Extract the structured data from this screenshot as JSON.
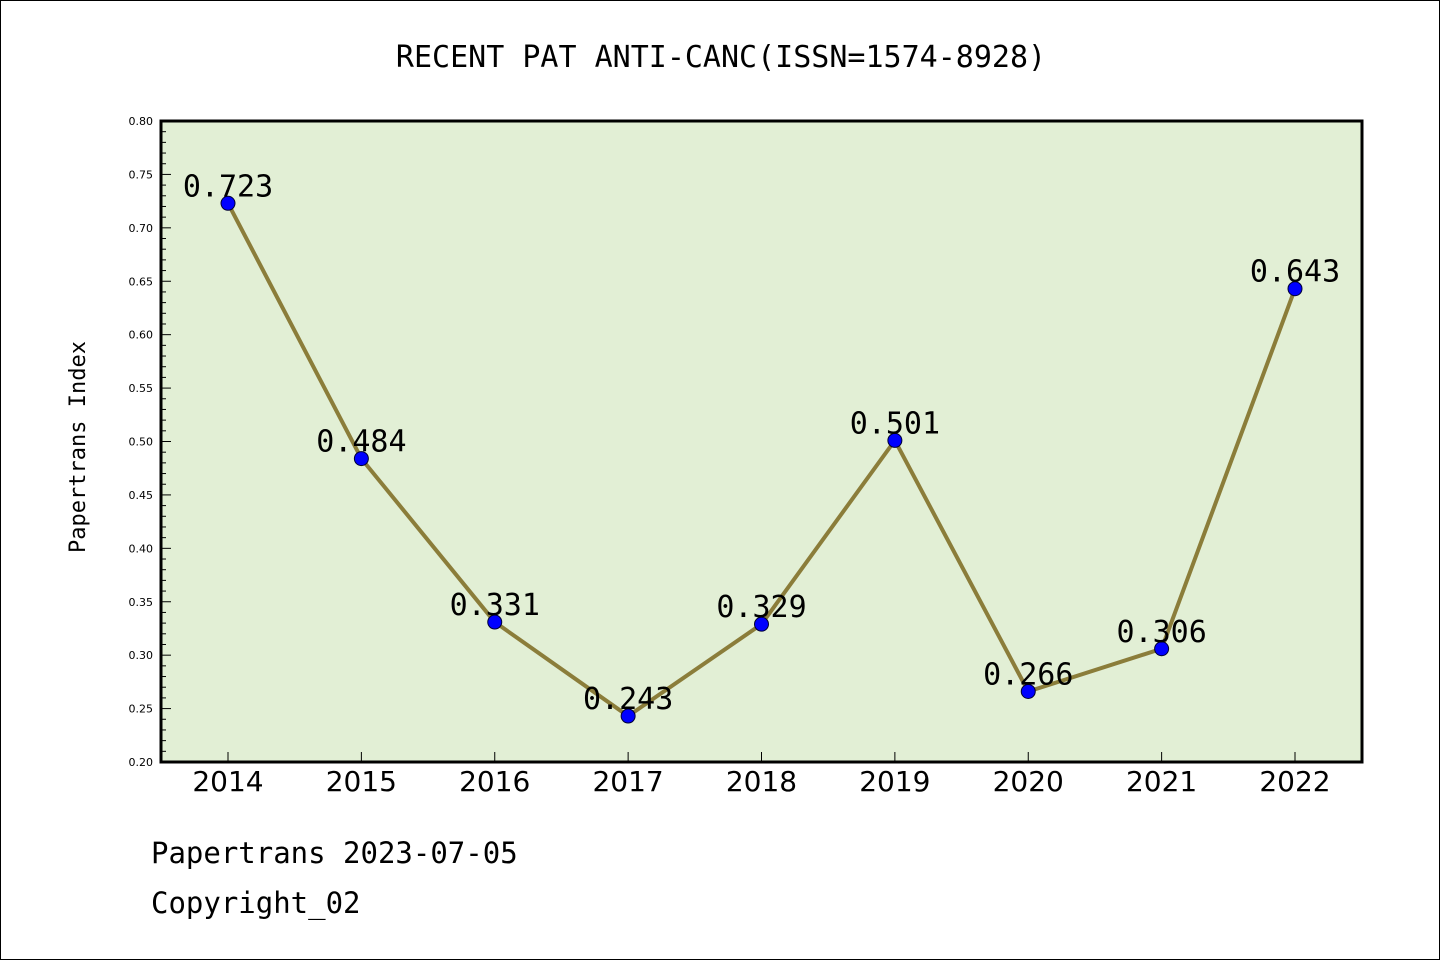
{
  "chart_data": {
    "type": "line",
    "title": "RECENT PAT ANTI-CANC(ISSN=1574-8928)",
    "ylabel": "Papertrans Index",
    "xlabel": "",
    "categories": [
      "2014",
      "2015",
      "2016",
      "2017",
      "2018",
      "2019",
      "2020",
      "2021",
      "2022"
    ],
    "values": [
      0.723,
      0.484,
      0.331,
      0.243,
      0.329,
      0.501,
      0.266,
      0.306,
      0.643
    ],
    "data_labels": [
      "0.723",
      "0.484",
      "0.331",
      "0.243",
      "0.329",
      "0.501",
      "0.266",
      "0.306",
      "0.643"
    ],
    "ylim": [
      0.2,
      0.8
    ],
    "yticks": [
      "0.20",
      "0.25",
      "0.30",
      "0.35",
      "0.40",
      "0.45",
      "0.50",
      "0.55",
      "0.60",
      "0.65",
      "0.70",
      "0.75",
      "0.80"
    ],
    "grid": false,
    "colors": {
      "plot_background": "#e2efd5",
      "line": "#8b7d3a",
      "marker": "#0000ff"
    }
  },
  "footer": {
    "line1": "Papertrans 2023-07-05",
    "line2": "Copyright_02"
  }
}
